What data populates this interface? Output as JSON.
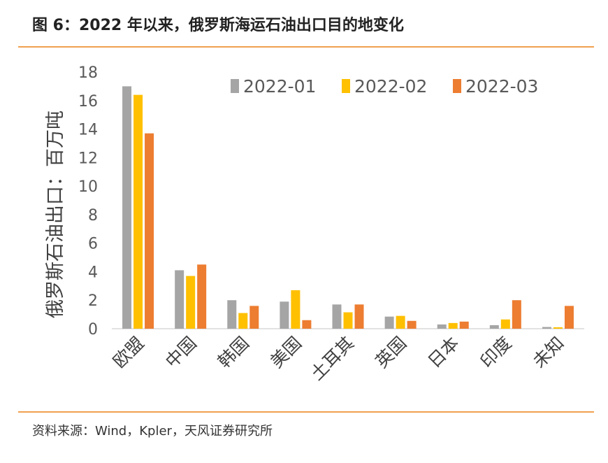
{
  "header": {
    "title": "图 6：2022 年以来，俄罗斯海运石油出口目的地变化"
  },
  "footer": {
    "source": "资料来源：Wind，Kpler，天风证券研究所"
  },
  "chart_data": {
    "type": "bar",
    "title": "",
    "xlabel": "",
    "ylabel": "俄罗斯石油出口：百万吨",
    "ylim": [
      0,
      18
    ],
    "yticks": [
      0,
      2,
      4,
      6,
      8,
      10,
      12,
      14,
      16,
      18
    ],
    "grid": false,
    "legend_position": "top",
    "categories": [
      "欧盟",
      "中国",
      "韩国",
      "美国",
      "土耳其",
      "英国",
      "日本",
      "印度",
      "未知"
    ],
    "series": [
      {
        "name": "2022-01",
        "color": "#a5a5a5",
        "values": [
          17.0,
          4.1,
          2.0,
          1.9,
          1.7,
          0.85,
          0.3,
          0.25,
          0.12
        ]
      },
      {
        "name": "2022-02",
        "color": "#ffc000",
        "values": [
          16.4,
          3.7,
          1.1,
          2.7,
          1.15,
          0.9,
          0.4,
          0.65,
          0.1
        ]
      },
      {
        "name": "2022-03",
        "color": "#ed7d31",
        "values": [
          13.7,
          4.5,
          1.6,
          0.6,
          1.7,
          0.55,
          0.5,
          2.0,
          1.6
        ]
      }
    ]
  }
}
